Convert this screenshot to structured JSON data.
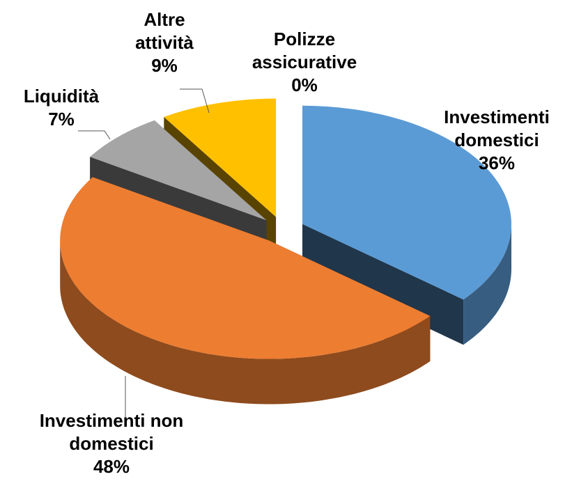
{
  "chart_data": {
    "type": "pie3d",
    "categories": [
      "Investimenti domestici",
      "Investimenti non domestici",
      "Liquidità",
      "Altre attività",
      "Polizze assicurative"
    ],
    "values": [
      36,
      48,
      7,
      9,
      0
    ],
    "value_labels": [
      "36%",
      "48%",
      "7%",
      "9%",
      "0%"
    ],
    "colors": [
      "#5b9bd5",
      "#ed7d31",
      "#a5a5a5",
      "#ffc000",
      "#4472c4"
    ]
  }
}
